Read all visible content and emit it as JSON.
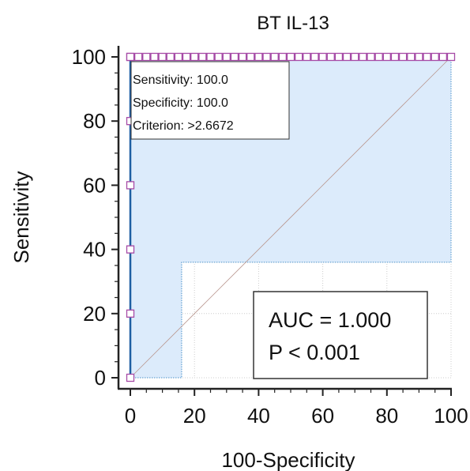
{
  "chart_data": {
    "type": "line",
    "title": "BT IL-13",
    "xlabel": "100-Specificity",
    "ylabel": "Sensitivity",
    "xlim": [
      0,
      100
    ],
    "ylim": [
      0,
      100
    ],
    "xticks": [
      "0",
      "20",
      "40",
      "60",
      "80",
      "100"
    ],
    "yticks": [
      "0",
      "20",
      "40",
      "60",
      "80",
      "100"
    ],
    "grid": true,
    "roc_curve": {
      "x": [
        0,
        0,
        0,
        0,
        0,
        0,
        0,
        2.5,
        5,
        7.5,
        10,
        12.5,
        15,
        17.5,
        20,
        22.5,
        25,
        27.5,
        30,
        32.5,
        35,
        37.5,
        40,
        42.5,
        45,
        47.5,
        50,
        52.5,
        55,
        57.5,
        60,
        62.5,
        65,
        67.5,
        70,
        72.5,
        75,
        77.5,
        80,
        82.5,
        85,
        87.5,
        90,
        92.5,
        95,
        97.5,
        100
      ],
      "y": [
        0,
        20,
        40,
        60,
        80,
        100,
        100,
        100,
        100,
        100,
        100,
        100,
        100,
        100,
        100,
        100,
        100,
        100,
        100,
        100,
        100,
        100,
        100,
        100,
        100,
        100,
        100,
        100,
        100,
        100,
        100,
        100,
        100,
        100,
        100,
        100,
        100,
        100,
        100,
        100,
        100,
        100,
        100,
        100,
        100,
        100,
        100
      ]
    },
    "ci_upper": {
      "x": [
        0,
        0,
        100,
        100
      ],
      "y": [
        0,
        100,
        100,
        100
      ]
    },
    "ci_lower": {
      "x": [
        0,
        16,
        16,
        100,
        100
      ],
      "y": [
        0,
        0,
        36,
        36,
        100
      ]
    },
    "diagonal": {
      "x": [
        0,
        100
      ],
      "y": [
        0,
        100
      ]
    },
    "annotation": [
      "Sensitivity: 100.0",
      "Specificity: 100.0",
      "Criterion: >2.6672"
    ],
    "stats": [
      "AUC = 1.000",
      "P < 0.001"
    ],
    "colors": {
      "curve": "#1f5fa3",
      "marker_edge": "#a64aa6",
      "ci_fill": "#dcebfb",
      "ci_line": "#4a90c8",
      "diagonal": "#b9978f",
      "grid": "#cccccc"
    }
  }
}
